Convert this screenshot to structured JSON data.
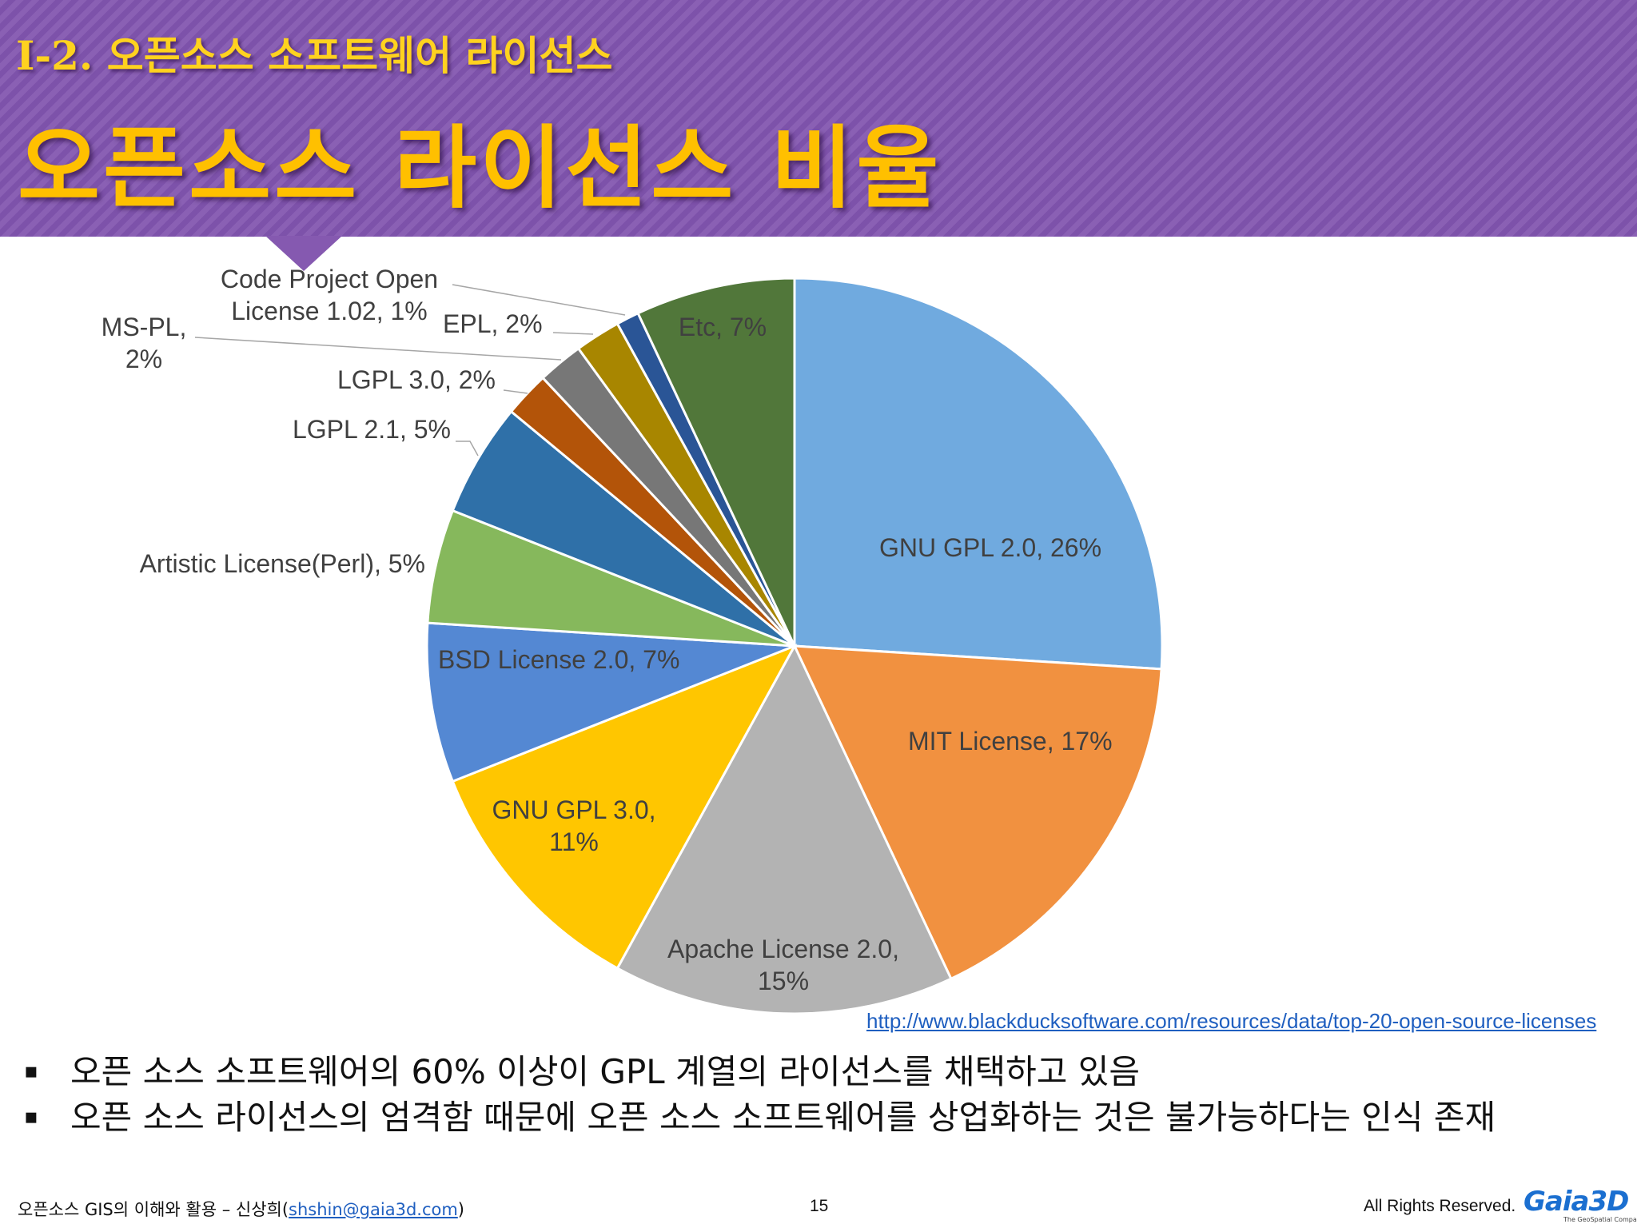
{
  "header": {
    "section_title": "I-2. 오픈소스 소프트웨어 라이선스",
    "slide_title": "오픈소스 라이선스 비율"
  },
  "chart_data": {
    "type": "pie",
    "start": "top, clockwise",
    "slices": [
      {
        "label": "GNU GPL 2.0, 26%",
        "value": 26,
        "color": "#70aadf"
      },
      {
        "label": "MIT License, 17%",
        "value": 17,
        "color": "#f19140"
      },
      {
        "label": "Apache License 2.0, 15%",
        "value": 15,
        "color": "#b3b3b3"
      },
      {
        "label": "GNU GPL 3.0, 11%",
        "value": 11,
        "color": "#ffc600"
      },
      {
        "label": "BSD License 2.0, 7%",
        "value": 7,
        "color": "#5488d3"
      },
      {
        "label": "Artistic License(Perl), 5%",
        "value": 5,
        "color": "#86b85c"
      },
      {
        "label": "LGPL 2.1, 5%",
        "value": 5,
        "color": "#2f70a8"
      },
      {
        "label": "LGPL 3.0, 2%",
        "value": 2,
        "color": "#b35409"
      },
      {
        "label": "MS-PL, 2%",
        "value": 2,
        "color": "#777777"
      },
      {
        "label": "EPL, 2%",
        "value": 2,
        "color": "#a88600"
      },
      {
        "label": "Code Project Open License 1.02, 1%",
        "value": 1,
        "color": "#2a5596"
      },
      {
        "label": "Etc, 7%",
        "value": 7,
        "color": "#51773a"
      }
    ]
  },
  "labels": {
    "gpl2": "GNU GPL 2.0, 26%",
    "mit": "MIT License, 17%",
    "apache_1": "Apache License 2.0,",
    "apache_2": "15%",
    "gpl3_1": "GNU GPL 3.0,",
    "gpl3_2": "11%",
    "bsd": "BSD License 2.0, 7%",
    "artistic": "Artistic License(Perl), 5%",
    "lgpl21": "LGPL 2.1, 5%",
    "lgpl30": "LGPL 3.0, 2%",
    "mspl_1": "MS-PL,",
    "mspl_2": "2%",
    "cpol_1": "Code Project Open",
    "cpol_2": "License 1.02, 1%",
    "epl": "EPL, 2%",
    "etc": "Etc, 7%"
  },
  "source_link": "http://www.blackducksoftware.com/resources/data/top-20-open-source-licenses",
  "bullets": [
    {
      "mark": "▪",
      "text": "오픈 소스 소프트웨어의 60% 이상이 GPL 계열의 라이선스를 채택하고 있음"
    },
    {
      "mark": "▪",
      "text": "오픈 소스 라이선스의 엄격함 때문에 오픈 소스 소프트웨어를 상업화하는 것은 불가능하다는 인식 존재"
    }
  ],
  "footer": {
    "left_prefix": "오픈소스 GIS의 이해와 활용 – 신상희(",
    "email": "shshin@gaia3d.com",
    "left_suffix": ")",
    "page_number": "15",
    "rights": "All Rights Reserved.",
    "logo_text": "Gaia3D",
    "logo_sub": "The GeoSpatial Company",
    "logo_color": "#1b6fd0"
  }
}
